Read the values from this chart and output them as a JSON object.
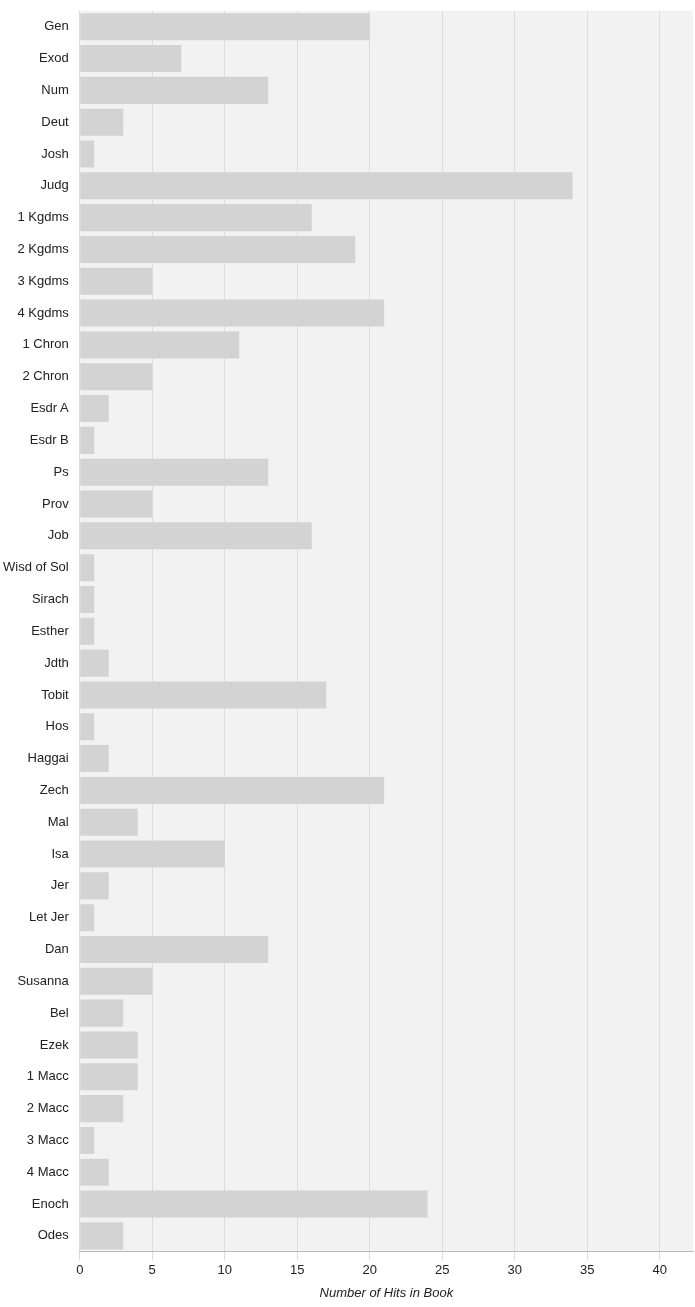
{
  "chart_data": {
    "type": "bar",
    "orientation": "horizontal",
    "xlabel": "Number of Hits in Book",
    "categories": [
      "Gen",
      "Exod",
      "Num",
      "Deut",
      "Josh",
      "Judg",
      "1 Kgdms",
      "2 Kgdms",
      "3 Kgdms",
      "4 Kgdms",
      "1 Chron",
      "2 Chron",
      "Esdr A",
      "Esdr B",
      "Ps",
      "Prov",
      "Job",
      "Wisd of Sol",
      "Sirach",
      "Esther",
      "Jdth",
      "Tobit",
      "Hos",
      "Haggai",
      "Zech",
      "Mal",
      "Isa",
      "Jer",
      "Let Jer",
      "Dan",
      "Susanna",
      "Bel",
      "Ezek",
      "1 Macc",
      "2 Macc",
      "3 Macc",
      "4 Macc",
      "Enoch",
      "Odes"
    ],
    "values": [
      20,
      7,
      13,
      3,
      1,
      34,
      16,
      19,
      5,
      21,
      11,
      5,
      2,
      1,
      13,
      5,
      16,
      1,
      1,
      1,
      2,
      17,
      1,
      2,
      21,
      4,
      10,
      2,
      1,
      13,
      5,
      3,
      4,
      4,
      3,
      1,
      2,
      24,
      3
    ],
    "color": "#d3d3d3",
    "xlim": [
      0,
      42.3
    ],
    "xticks": [
      0,
      5,
      10,
      15,
      20,
      25,
      30,
      35,
      40
    ],
    "grid": "x"
  }
}
